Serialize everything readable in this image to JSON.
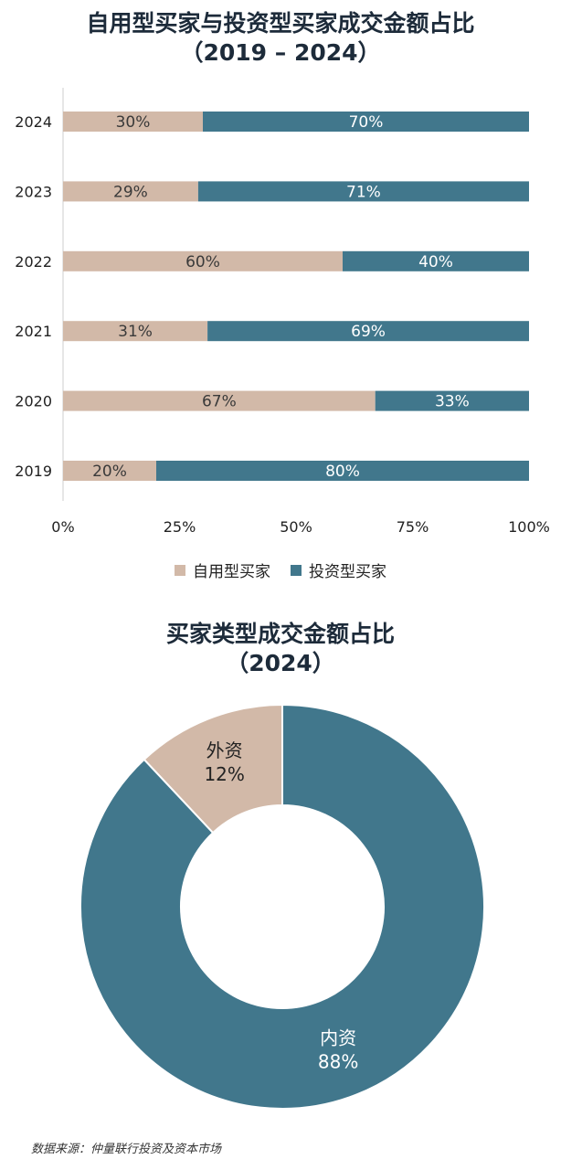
{
  "chart_data": [
    {
      "type": "bar",
      "orientation": "horizontal",
      "stacked": true,
      "title": "自用型买家与投资型买家成交金额占比",
      "subtitle": "（2019 – 2024）",
      "categories": [
        "2024",
        "2023",
        "2022",
        "2021",
        "2020",
        "2019"
      ],
      "series": [
        {
          "name": "自用型买家",
          "values": [
            30,
            29,
            60,
            31,
            67,
            20
          ],
          "labels": [
            "30%",
            "29%",
            "60%",
            "31%",
            "67%",
            "20%"
          ],
          "color": "#d2b9a8"
        },
        {
          "name": "投资型买家",
          "values": [
            70,
            71,
            40,
            69,
            33,
            80
          ],
          "labels": [
            "70%",
            "71%",
            "40%",
            "69%",
            "33%",
            "80%"
          ],
          "color": "#41778c"
        }
      ],
      "xticks": [
        "0%",
        "25%",
        "50%",
        "75%",
        "100%"
      ],
      "xlim": [
        0,
        100
      ],
      "legend_position": "bottom"
    },
    {
      "type": "pie",
      "donut": true,
      "title": "买家类型成交金额占比",
      "subtitle": "（2024）",
      "slices": [
        {
          "name": "外资",
          "value": 12,
          "label": "12%",
          "color": "#d2b9a8"
        },
        {
          "name": "内资",
          "value": 88,
          "label": "88%",
          "color": "#41778c"
        }
      ]
    }
  ],
  "source": "数据来源：仲量联行投资及资本市场"
}
